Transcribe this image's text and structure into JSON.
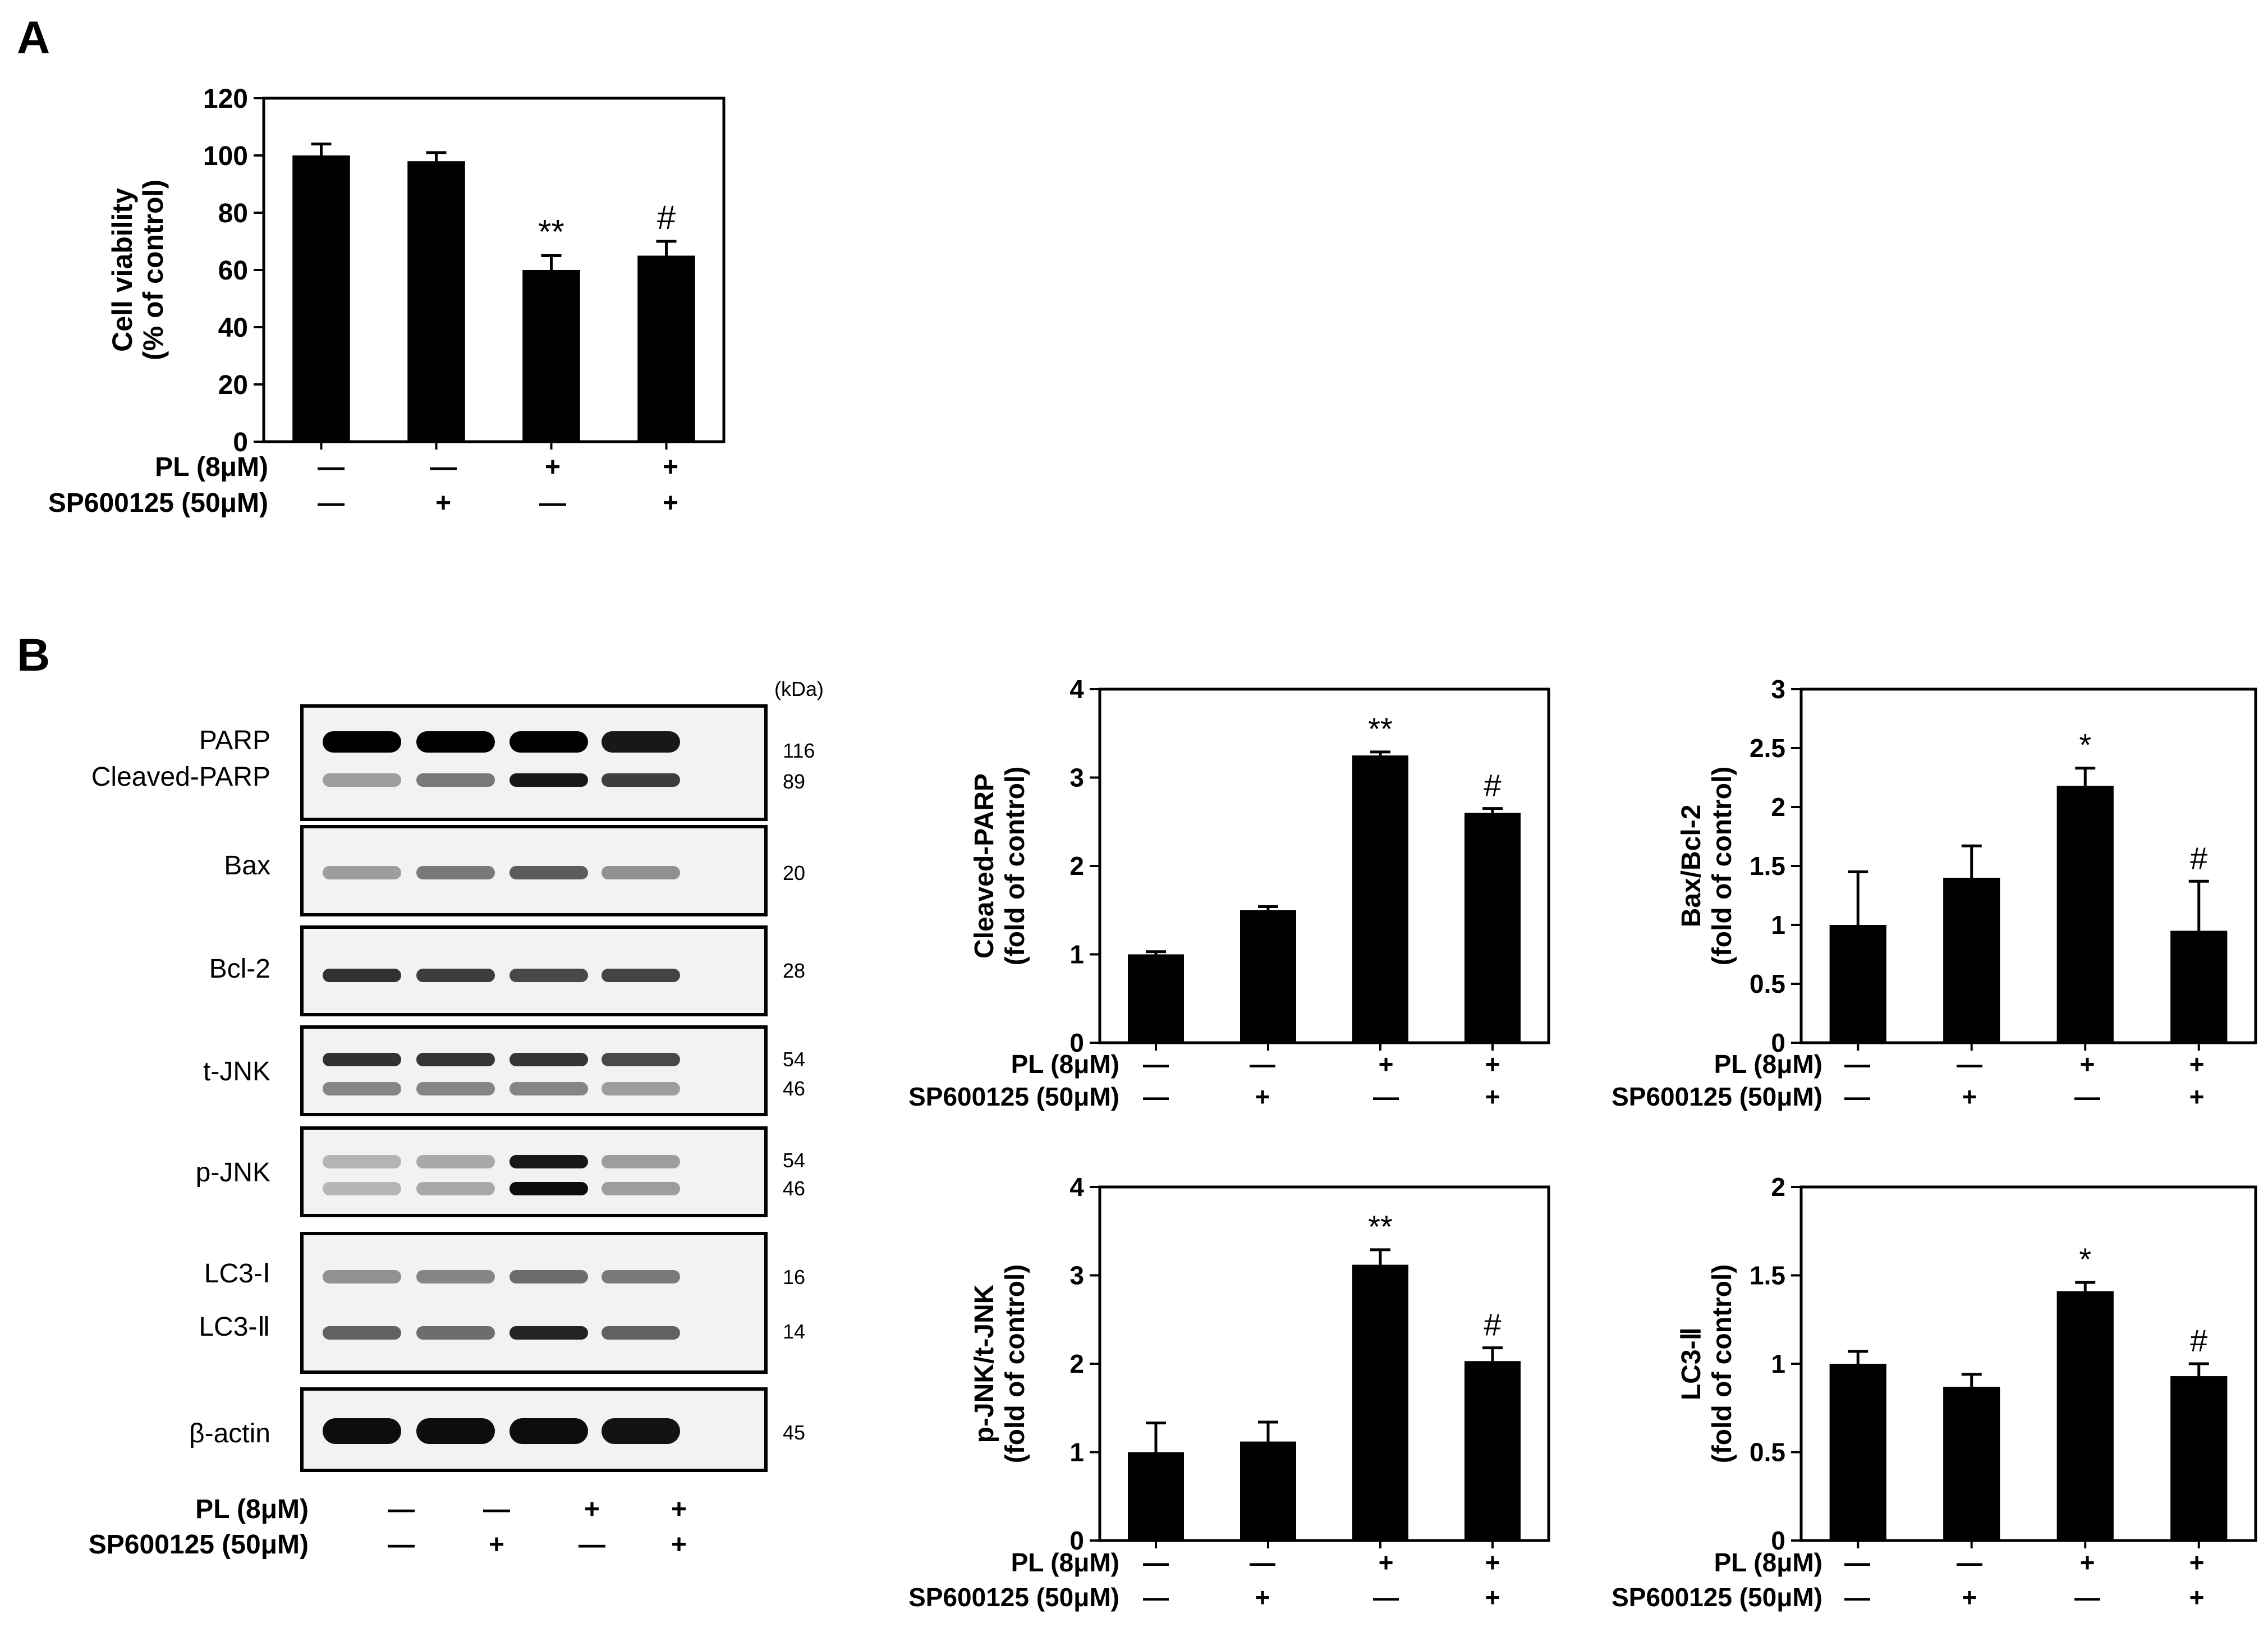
{
  "panels": {
    "a": "A",
    "b": "B"
  },
  "treatment_rows": {
    "pl": {
      "label": "PL (8μM)",
      "signs": [
        "—",
        "—",
        "+",
        "+"
      ]
    },
    "sp": {
      "label": "SP600125 (50μM)",
      "signs": [
        "—",
        "+",
        "—",
        "+"
      ]
    }
  },
  "blot": {
    "kda_header": "(kDa)",
    "lanes": 4,
    "panels": [
      {
        "labels": [
          "PARP",
          "Cleaved-PARP"
        ],
        "kda": [
          "116",
          "89"
        ],
        "bands": [
          [
            1.0,
            1.0,
            1.0,
            0.9
          ],
          [
            0.35,
            0.5,
            0.9,
            0.75
          ]
        ]
      },
      {
        "labels": [
          "Bax"
        ],
        "kda": [
          "20"
        ],
        "bands": [
          [
            0.35,
            0.5,
            0.62,
            0.4
          ]
        ]
      },
      {
        "labels": [
          "Bcl-2"
        ],
        "kda": [
          "28"
        ],
        "bands": [
          [
            0.8,
            0.75,
            0.7,
            0.72
          ]
        ]
      },
      {
        "labels": [
          "t-JNK"
        ],
        "kda": [
          "54",
          "46"
        ],
        "bands": [
          [
            0.8,
            0.78,
            0.78,
            0.7
          ],
          [
            0.45,
            0.45,
            0.45,
            0.35
          ]
        ]
      },
      {
        "labels": [
          "p-JNK"
        ],
        "kda": [
          "54",
          "46"
        ],
        "bands": [
          [
            0.25,
            0.3,
            0.9,
            0.35
          ],
          [
            0.25,
            0.3,
            0.95,
            0.35
          ]
        ]
      },
      {
        "labels": [
          "LC3-Ⅰ",
          "LC3-Ⅱ"
        ],
        "kda": [
          "16",
          "14"
        ],
        "bands": [
          [
            0.4,
            0.45,
            0.55,
            0.5
          ],
          [
            0.6,
            0.55,
            0.85,
            0.6
          ]
        ]
      },
      {
        "labels": [
          "β-actin"
        ],
        "kda": [
          "45"
        ],
        "bands": [
          [
            0.95,
            0.95,
            0.95,
            0.92
          ]
        ]
      }
    ]
  },
  "chart_data": [
    {
      "id": "A_viability",
      "type": "bar",
      "categories": [
        "1",
        "2",
        "3",
        "4"
      ],
      "values": [
        100,
        98,
        60,
        65
      ],
      "errors": [
        4,
        3,
        5,
        5
      ],
      "ylabel": [
        "Cell viability",
        "(% of control)"
      ],
      "ylim": [
        0,
        120
      ],
      "yticks": [
        "0",
        "20",
        "40",
        "60",
        "80",
        "100",
        "120"
      ],
      "tick_values": [
        0,
        20,
        40,
        60,
        80,
        100,
        120
      ],
      "annotations": [
        "",
        "",
        "**",
        "#"
      ]
    },
    {
      "id": "B_cleaved_parp",
      "type": "bar",
      "categories": [
        "1",
        "2",
        "3",
        "4"
      ],
      "values": [
        1.0,
        1.5,
        3.25,
        2.6
      ],
      "errors": [
        0.03,
        0.04,
        0.04,
        0.05
      ],
      "ylabel": [
        "Cleaved-PARP",
        "(fold of control)"
      ],
      "ylim": [
        0,
        4
      ],
      "yticks": [
        "0",
        "1",
        "2",
        "3",
        "4"
      ],
      "tick_values": [
        0,
        1,
        2,
        3,
        4
      ],
      "annotations": [
        "",
        "",
        "**",
        "#"
      ]
    },
    {
      "id": "B_bax_bcl2",
      "type": "bar",
      "categories": [
        "1",
        "2",
        "3",
        "4"
      ],
      "values": [
        1.0,
        1.4,
        2.18,
        0.95
      ],
      "errors": [
        0.45,
        0.27,
        0.15,
        0.42
      ],
      "ylabel": [
        "Bax/Bcl-2",
        "(fold of control)"
      ],
      "ylim": [
        0,
        3
      ],
      "yticks": [
        "0",
        "0.5",
        "1",
        "1.5",
        "2",
        "2.5",
        "3"
      ],
      "tick_values": [
        0,
        0.5,
        1,
        1.5,
        2,
        2.5,
        3
      ],
      "annotations": [
        "",
        "",
        "*",
        "#"
      ]
    },
    {
      "id": "B_pjnk_tjnk",
      "type": "bar",
      "categories": [
        "1",
        "2",
        "3",
        "4"
      ],
      "values": [
        1.0,
        1.12,
        3.12,
        2.03
      ],
      "errors": [
        0.33,
        0.22,
        0.17,
        0.15
      ],
      "ylabel": [
        "p-JNK/t-JNK",
        "(fold of control)"
      ],
      "ylim": [
        0,
        4
      ],
      "yticks": [
        "0",
        "1",
        "2",
        "3",
        "4"
      ],
      "tick_values": [
        0,
        1,
        2,
        3,
        4
      ],
      "annotations": [
        "",
        "",
        "**",
        "#"
      ]
    },
    {
      "id": "B_lc3_ii",
      "type": "bar",
      "categories": [
        "1",
        "2",
        "3",
        "4"
      ],
      "values": [
        1.0,
        0.87,
        1.41,
        0.93
      ],
      "errors": [
        0.07,
        0.07,
        0.05,
        0.07
      ],
      "ylabel": [
        "LC3-Ⅱ",
        "(fold of control)"
      ],
      "ylim": [
        0,
        2
      ],
      "yticks": [
        "0",
        "0.5",
        "1",
        "1.5",
        "2"
      ],
      "tick_values": [
        0,
        0.5,
        1,
        1.5,
        2
      ],
      "annotations": [
        "",
        "",
        "*",
        "#"
      ]
    }
  ]
}
